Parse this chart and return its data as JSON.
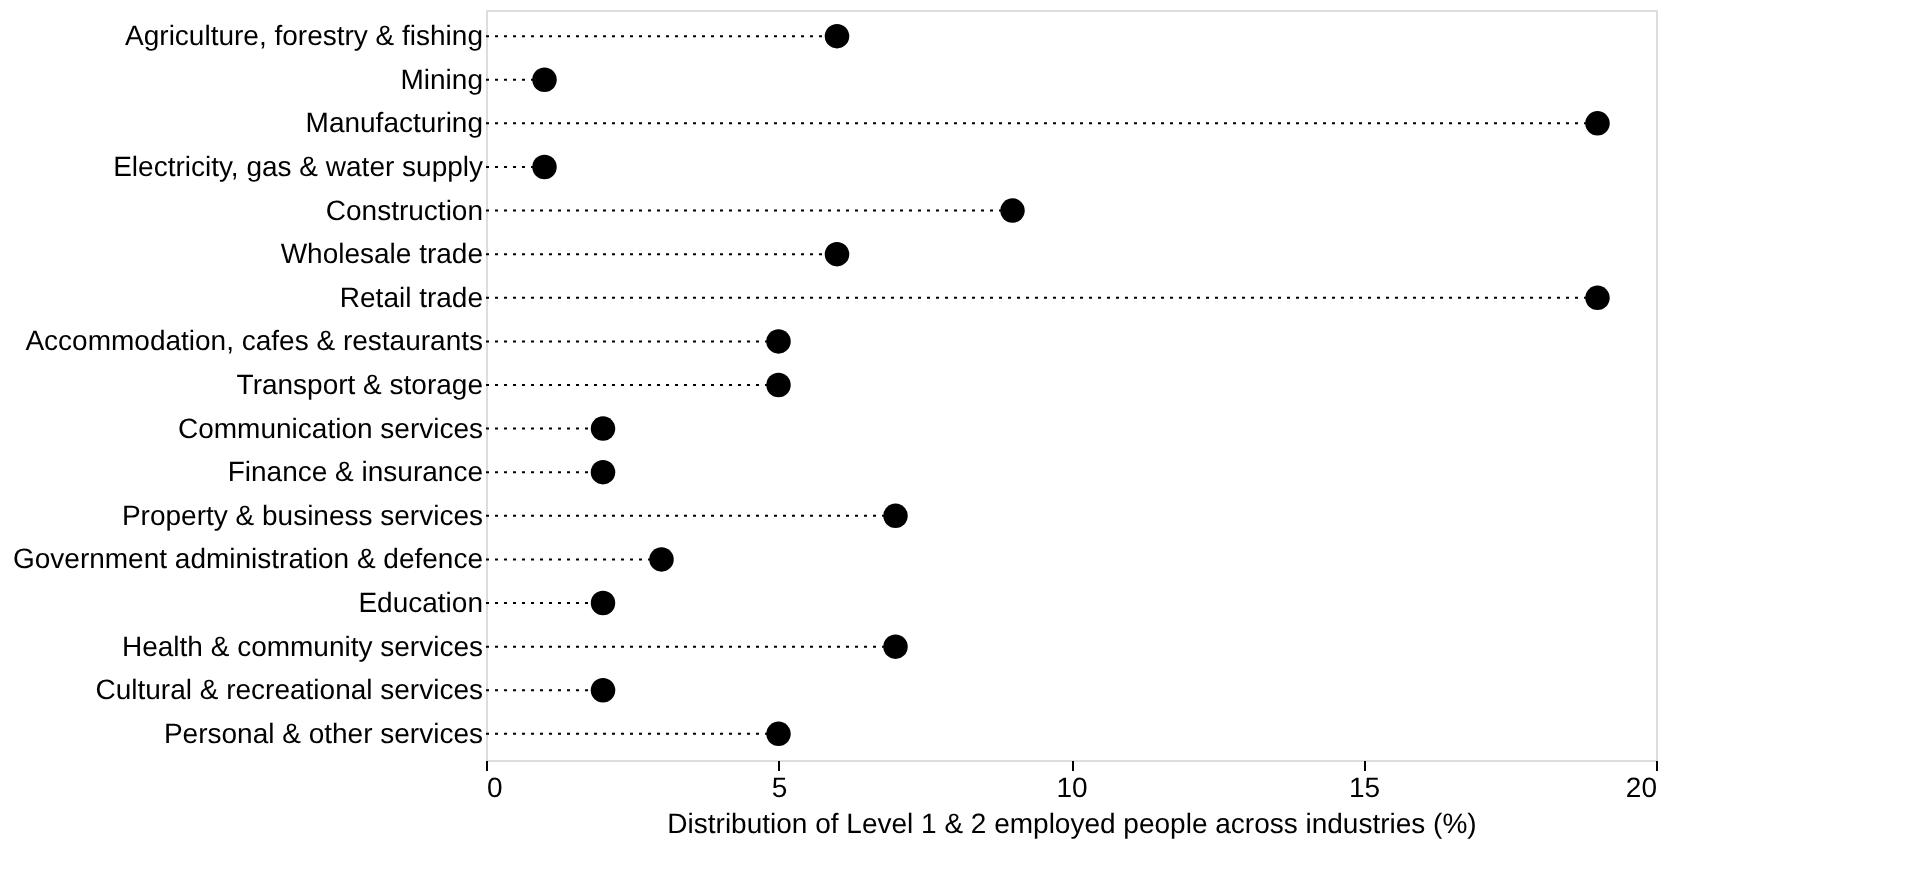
{
  "chart_data": {
    "type": "lollipop",
    "orientation": "horizontal",
    "categories": [
      "Agriculture, forestry & fishing",
      "Mining",
      "Manufacturing",
      "Electricity, gas & water supply",
      "Construction",
      "Wholesale trade",
      "Retail trade",
      "Accommodation, cafes & restaurants",
      "Transport & storage",
      "Communication services",
      "Finance & insurance",
      "Property & business services",
      "Government administration & defence",
      "Education",
      "Health & community services",
      "Cultural & recreational services",
      "Personal & other services"
    ],
    "values": [
      6,
      1,
      19,
      1,
      9,
      6,
      19,
      5,
      5,
      2,
      2,
      7,
      3,
      2,
      7,
      2,
      5
    ],
    "color": "#000000",
    "marker": "circle",
    "line_style": "dotted",
    "xlabel": "Distribution of Level 1 & 2 employed people across industries (%)",
    "xlim": [
      0,
      20
    ],
    "xticks": [
      0,
      5,
      10,
      15,
      20
    ],
    "grid": false
  }
}
